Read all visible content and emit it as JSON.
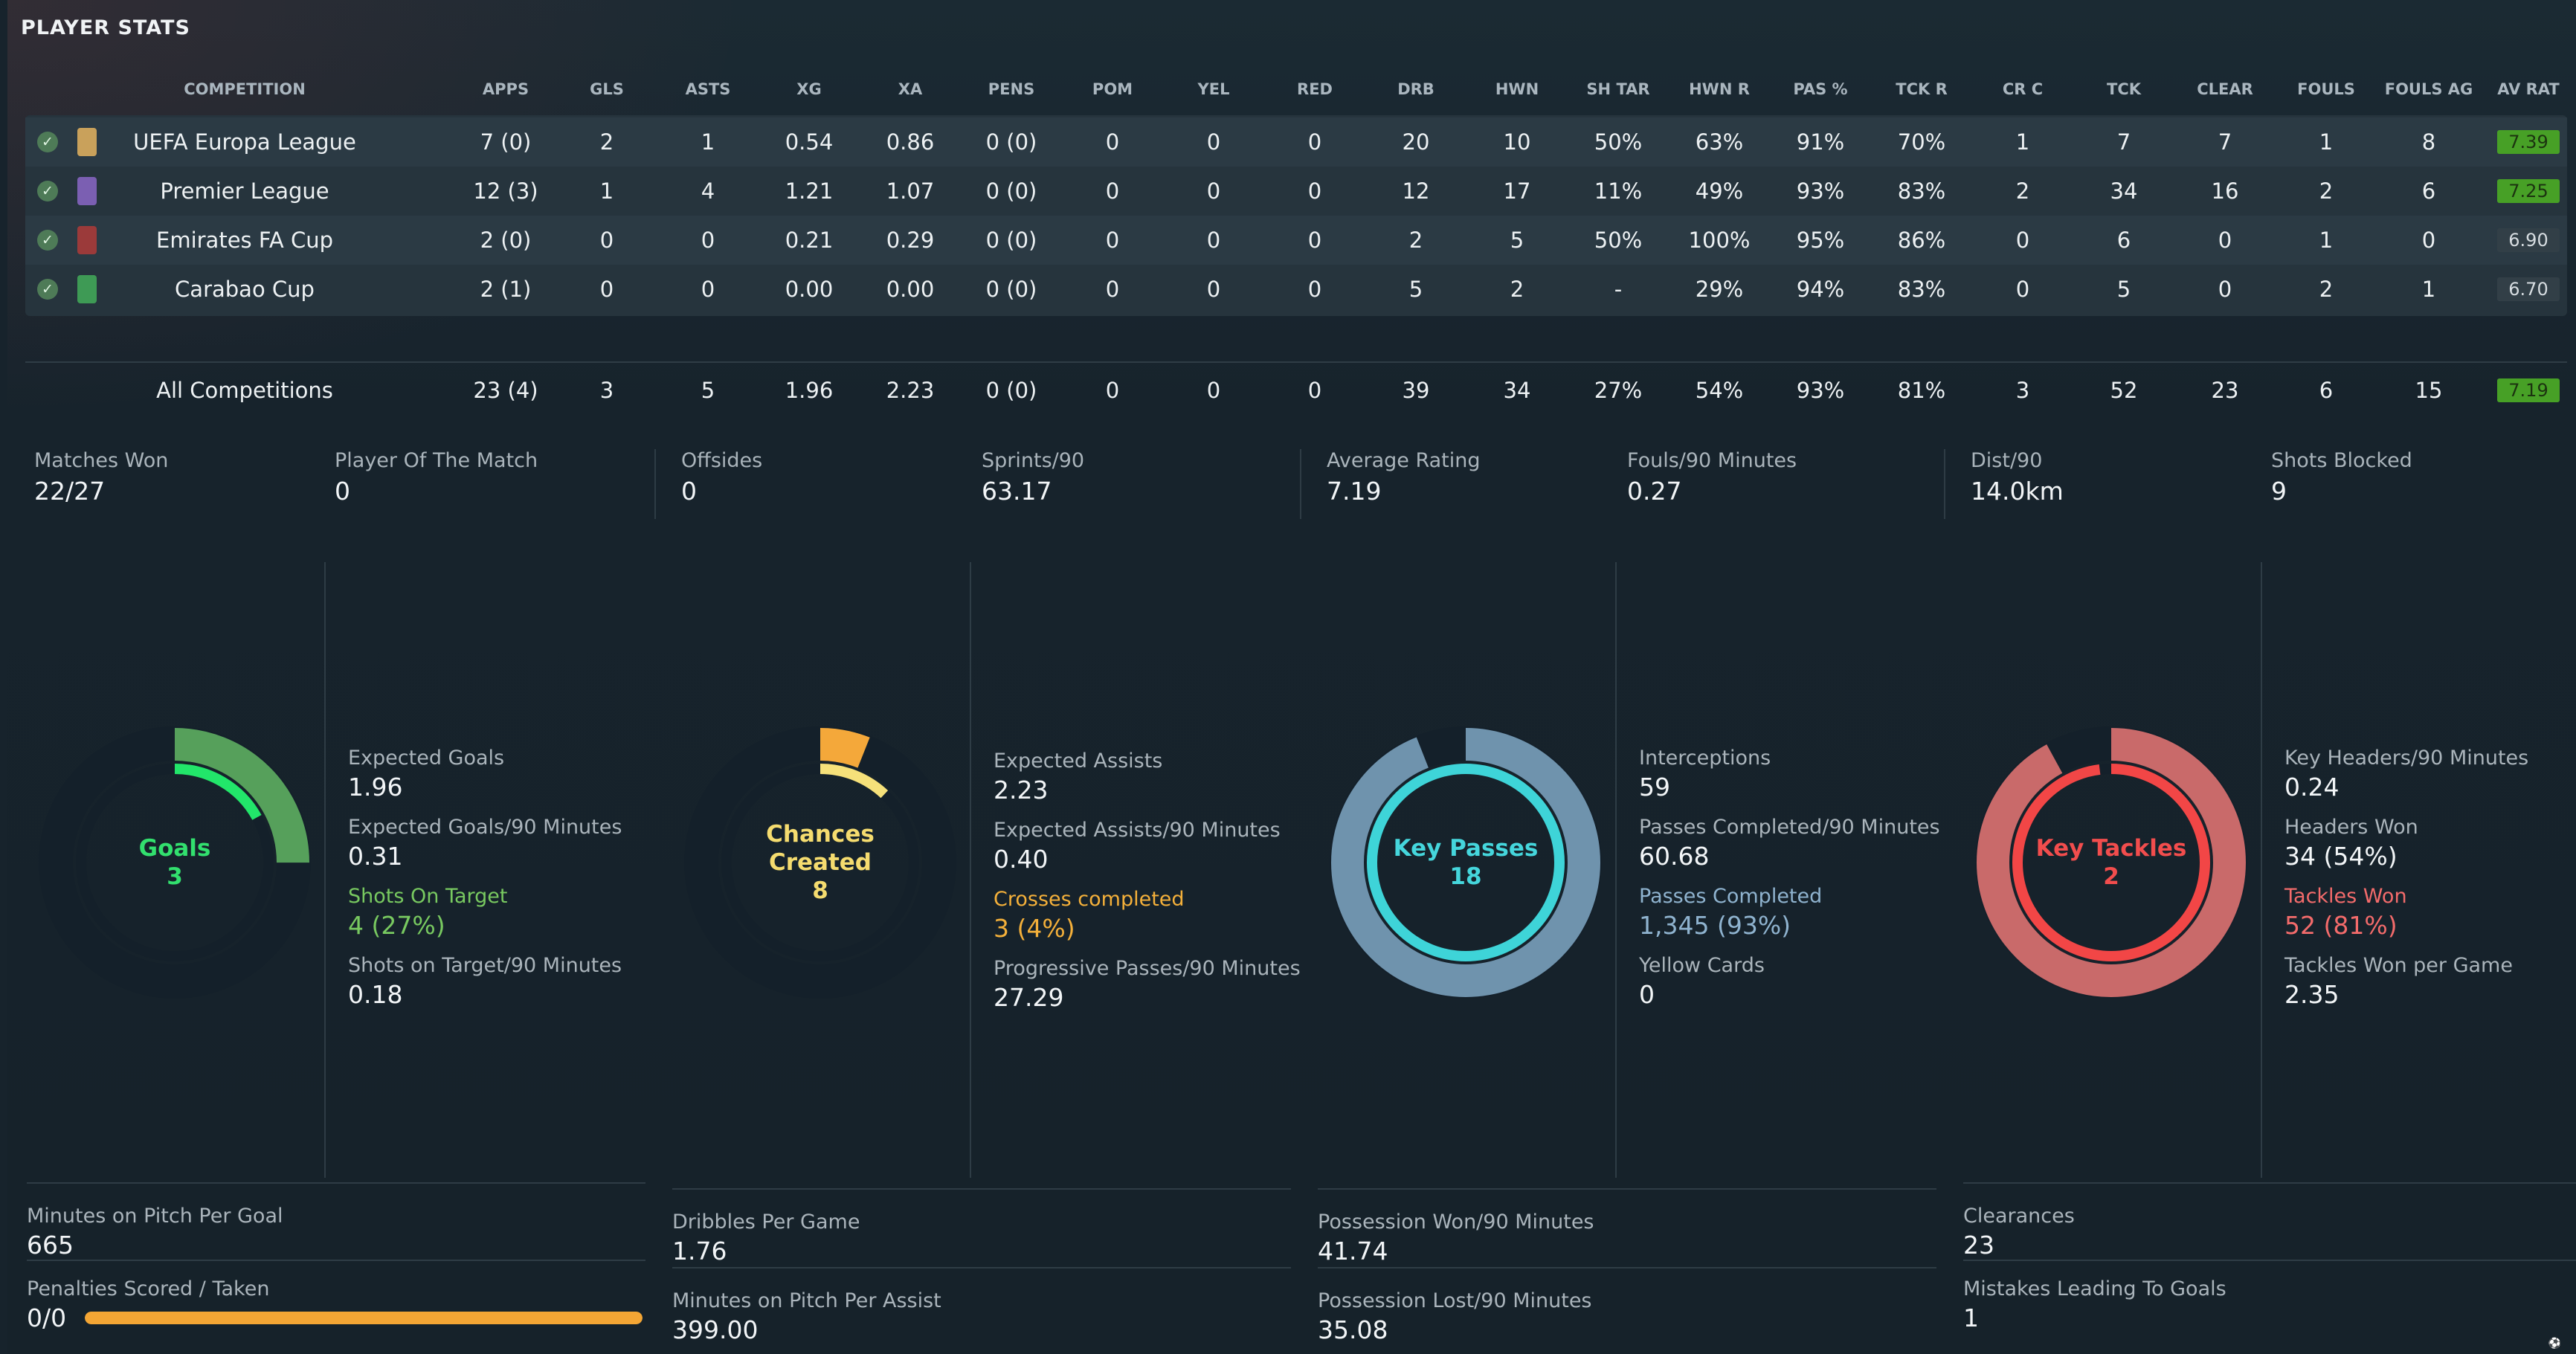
{
  "title": "PLAYER STATS",
  "columns": [
    "COMPETITION",
    "APPS",
    "GLS",
    "ASTS",
    "XG",
    "XA",
    "PENS",
    "POM",
    "YEL",
    "RED",
    "DRB",
    "HWN",
    "SH TAR",
    "HWN R",
    "PAS %",
    "TCK R",
    "CR C",
    "TCK",
    "CLEAR",
    "FOULS",
    "FOULS AG",
    "AV RAT"
  ],
  "rows": [
    {
      "competition": "UEFA Europa League",
      "apps": "7 (0)",
      "gls": "2",
      "asts": "1",
      "xg": "0.54",
      "xa": "0.86",
      "pens": "0 (0)",
      "pom": "0",
      "yel": "0",
      "red": "0",
      "drb": "20",
      "hwn": "10",
      "sh_tar": "50%",
      "hwn_r": "63%",
      "pas": "91%",
      "tck_r": "70%",
      "cr_c": "1",
      "tck": "7",
      "clear": "7",
      "fouls": "1",
      "fouls_ag": "8",
      "av_rat": "7.39",
      "rating_style": "green",
      "crest_color": "#c9a15b"
    },
    {
      "competition": "Premier League",
      "apps": "12 (3)",
      "gls": "1",
      "asts": "4",
      "xg": "1.21",
      "xa": "1.07",
      "pens": "0 (0)",
      "pom": "0",
      "yel": "0",
      "red": "0",
      "drb": "12",
      "hwn": "17",
      "sh_tar": "11%",
      "hwn_r": "49%",
      "pas": "93%",
      "tck_r": "83%",
      "cr_c": "2",
      "tck": "34",
      "clear": "16",
      "fouls": "2",
      "fouls_ag": "6",
      "av_rat": "7.25",
      "rating_style": "green",
      "crest_color": "#7b5fb2"
    },
    {
      "competition": "Emirates FA Cup",
      "apps": "2 (0)",
      "gls": "0",
      "asts": "0",
      "xg": "0.21",
      "xa": "0.29",
      "pens": "0 (0)",
      "pom": "0",
      "yel": "0",
      "red": "0",
      "drb": "2",
      "hwn": "5",
      "sh_tar": "50%",
      "hwn_r": "100%",
      "pas": "95%",
      "tck_r": "86%",
      "cr_c": "0",
      "tck": "6",
      "clear": "0",
      "fouls": "1",
      "fouls_ag": "0",
      "av_rat": "6.90",
      "rating_style": "gray",
      "crest_color": "#9b3a3a"
    },
    {
      "competition": "Carabao Cup",
      "apps": "2 (1)",
      "gls": "0",
      "asts": "0",
      "xg": "0.00",
      "xa": "0.00",
      "pens": "0 (0)",
      "pom": "0",
      "yel": "0",
      "red": "0",
      "drb": "5",
      "hwn": "2",
      "sh_tar": "-",
      "hwn_r": "29%",
      "pas": "94%",
      "tck_r": "83%",
      "cr_c": "0",
      "tck": "5",
      "clear": "0",
      "fouls": "2",
      "fouls_ag": "1",
      "av_rat": "6.70",
      "rating_style": "gray",
      "crest_color": "#3e9a55"
    }
  ],
  "totals": {
    "competition": "All Competitions",
    "apps": "23 (4)",
    "gls": "3",
    "asts": "5",
    "xg": "1.96",
    "xa": "2.23",
    "pens": "0 (0)",
    "pom": "0",
    "yel": "0",
    "red": "0",
    "drb": "39",
    "hwn": "34",
    "sh_tar": "27%",
    "hwn_r": "54%",
    "pas": "93%",
    "tck_r": "81%",
    "cr_c": "3",
    "tck": "52",
    "clear": "23",
    "fouls": "6",
    "fouls_ag": "15",
    "av_rat": "7.19",
    "rating_style": "green"
  },
  "summary": [
    {
      "label": "Matches Won",
      "value": "22/27"
    },
    {
      "label": "Player Of The Match",
      "value": "0"
    },
    {
      "label": "Offsides",
      "value": "0"
    },
    {
      "label": "Sprints/90",
      "value": "63.17"
    },
    {
      "label": "Average Rating",
      "value": "7.19"
    },
    {
      "label": "Fouls/90 Minutes",
      "value": "0.27"
    },
    {
      "label": "Dist/90",
      "value": "14.0km"
    },
    {
      "label": "Shots Blocked",
      "value": "9"
    }
  ],
  "donuts": [
    {
      "label_lines": [
        "Goals",
        "3"
      ],
      "color": "#22e66a",
      "track_color": "#56a05b",
      "track_fraction": 0.25,
      "fill_fraction": 0.17,
      "text_color": "#32e06e"
    },
    {
      "label_lines": [
        "Chances",
        "Created",
        "8"
      ],
      "color": "#f6e17a",
      "track_color": "#f4a83a",
      "track_fraction": 0.06,
      "fill_fraction": 0.12,
      "text_color": "#f5dc6f"
    },
    {
      "label_lines": [
        "Key Passes",
        "18"
      ],
      "color": "#3ed4d8",
      "track_color": "#6f93ad",
      "track_fraction": 0.94,
      "fill_fraction": 1.0,
      "text_color": "#45d6dc"
    },
    {
      "label_lines": [
        "Key Tackles",
        "2"
      ],
      "color": "#f24646",
      "track_color": "#c96a6a",
      "track_fraction": 0.92,
      "fill_fraction": 0.98,
      "text_color": "#f24d4d"
    }
  ],
  "metrics": [
    [
      {
        "label": "Expected Goals",
        "value": "1.96",
        "style": ""
      },
      {
        "label": "Expected Goals/90 Minutes",
        "value": "0.31",
        "style": ""
      },
      {
        "label": "Shots On Target",
        "value": "4 (27%)",
        "style": "green"
      },
      {
        "label": "Shots on Target/90 Minutes",
        "value": "0.18",
        "style": ""
      }
    ],
    [
      {
        "label": "Expected Assists",
        "value": "2.23",
        "style": ""
      },
      {
        "label": "Expected Assists/90 Minutes",
        "value": "0.40",
        "style": ""
      },
      {
        "label": "Crosses completed",
        "value": "3 (4%)",
        "style": "orange"
      },
      {
        "label": "Progressive Passes/90 Minutes",
        "value": "27.29",
        "style": ""
      }
    ],
    [
      {
        "label": "Interceptions",
        "value": "59",
        "style": ""
      },
      {
        "label": "Passes Completed/90 Minutes",
        "value": "60.68",
        "style": ""
      },
      {
        "label": "Passes Completed",
        "value": "1,345 (93%)",
        "style": "blue"
      },
      {
        "label": "Yellow Cards",
        "value": "0",
        "style": ""
      }
    ],
    [
      {
        "label": "Key Headers/90 Minutes",
        "value": "0.24",
        "style": ""
      },
      {
        "label": "Headers Won",
        "value": "34 (54%)",
        "style": ""
      },
      {
        "label": "Tackles Won",
        "value": "52 (81%)",
        "style": "red"
      },
      {
        "label": "Tackles Won per Game",
        "value": "2.35",
        "style": ""
      }
    ]
  ],
  "bottom": [
    [
      {
        "label": "Minutes on Pitch Per Goal",
        "value": "665"
      },
      {
        "label": "Penalties Scored / Taken",
        "value": "0/0",
        "progress": 1.0
      }
    ],
    [
      {
        "label": "Dribbles Per Game",
        "value": "1.76"
      },
      {
        "label": "Minutes on Pitch Per Assist",
        "value": "399.00"
      }
    ],
    [
      {
        "label": "Possession Won/90 Minutes",
        "value": "41.74"
      },
      {
        "label": "Possession Lost/90 Minutes",
        "value": "35.08"
      }
    ],
    [
      {
        "label": "Clearances",
        "value": "23"
      },
      {
        "label": "Mistakes Leading To Goals",
        "value": "1"
      }
    ]
  ],
  "colors": {
    "rating_green": "#47a026",
    "rating_gray": "#323f47",
    "penalty_bar": "#f4a634"
  }
}
